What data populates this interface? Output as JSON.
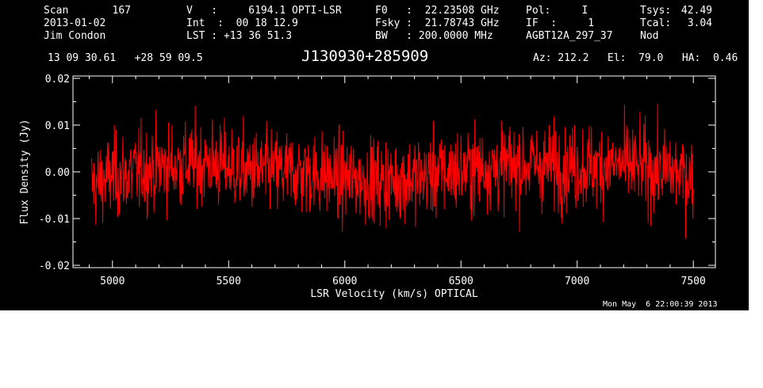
{
  "header": {
    "scan_label": "Scan",
    "scan_value": "167",
    "date": "2013-01-02",
    "observer": "Jim Condon",
    "v_line": "V   :     6194.1 OPTI-LSR",
    "int_line": "Int  :  00 18 12.9",
    "lst_line": "LST : +13 36 51.3",
    "f0_line": "F0   :  22.23508 GHz",
    "fsky_line": "Fsky :  21.78743 GHz",
    "bw_line": "BW   : 200.0000 MHz",
    "pol_line": "Pol:     I",
    "if_line": "IF  :     1",
    "project": "AGBT12A_297_37",
    "tsys_label": "Tsys:",
    "tsys_value": "42.49",
    "tcal_label": "Tcal:",
    "tcal_value": "3.04",
    "mode": "Nod",
    "coords": "13 09 30.61   +28 59 09.5",
    "source": "J130930+285909",
    "pointing": "Az: 212.2   El:  79.0   HA:  0.46"
  },
  "timestamp": "Mon May  6 22:00:39 2013",
  "colors": {
    "background": "#000000",
    "foreground": "#ffffff",
    "trace": "#ff0000"
  },
  "chart_data": {
    "type": "line",
    "title": "",
    "xlabel": "LSR Velocity (km/s) OPTICAL",
    "ylabel": "Flux Density (Jy)",
    "xlim": [
      4830,
      7595
    ],
    "ylim": [
      -0.0205,
      0.0205
    ],
    "xticks": [
      5000,
      5500,
      6000,
      6500,
      7000,
      7500
    ],
    "xtick_labels": [
      "5000",
      "5500",
      "6000",
      "6500",
      "7000",
      "7500"
    ],
    "yticks": [
      -0.02,
      -0.01,
      0.0,
      0.01,
      0.02
    ],
    "ytick_labels": [
      "-0.02",
      "-0.01",
      "0.00",
      "0.01",
      "0.02"
    ],
    "grid": false,
    "series": [
      {
        "color": "#ff0000",
        "x_range": [
          4910,
          7500
        ],
        "n_channels": 1400,
        "noise_rms_jy": 0.0045,
        "baseline": {
          "x": [
            4910,
            5000,
            5200,
            5400,
            5600,
            5800,
            6000,
            6200,
            6400,
            6600,
            6800,
            7000,
            7200,
            7400,
            7500
          ],
          "y": [
            -0.003,
            -0.001,
            0.001,
            0.002,
            0.0,
            0.0,
            -0.0015,
            -0.002,
            -0.0005,
            0.001,
            0.0015,
            0.001,
            0.0015,
            0.0,
            -0.001
          ]
        },
        "peak_max": 0.015,
        "peak_min": -0.017
      }
    ]
  }
}
